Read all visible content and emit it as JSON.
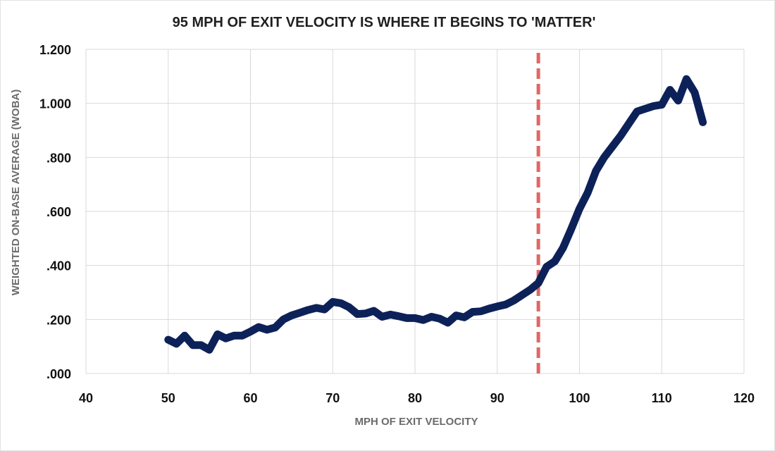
{
  "chart_data": {
    "type": "line",
    "title": "95 MPH OF EXIT VELOCITY IS WHERE IT BEGINS TO 'MATTER'",
    "xlabel": "MPH OF EXIT VELOCITY",
    "ylabel": "WEIGHTED ON-BASE AVERAGE (WOBA)",
    "xlim": [
      40,
      120
    ],
    "ylim": [
      0,
      1.2
    ],
    "x_ticks": [
      40,
      50,
      60,
      70,
      80,
      90,
      100,
      110,
      120
    ],
    "x_tick_labels": [
      "40",
      "50",
      "60",
      "70",
      "80",
      "90",
      "100",
      "110",
      "120"
    ],
    "y_ticks": [
      0,
      0.2,
      0.4,
      0.6,
      0.8,
      1.0,
      1.2
    ],
    "y_tick_labels": [
      ".000",
      ".200",
      ".400",
      ".600",
      ".800",
      "1.000",
      "1.200"
    ],
    "grid": true,
    "colors": {
      "line": "#0d2159",
      "marker": "#e06666",
      "grid": "#d9d9d9"
    },
    "series": [
      {
        "x": [
          50,
          51,
          52,
          53,
          54,
          55,
          56,
          57,
          58,
          59,
          60,
          61,
          62,
          63,
          64,
          65,
          66,
          67,
          68,
          69,
          70,
          71,
          72,
          73,
          74,
          75,
          76,
          77,
          78,
          79,
          80,
          81,
          82,
          83,
          84,
          85,
          86,
          87,
          88,
          89,
          90,
          91,
          92,
          93,
          94,
          95,
          96,
          97,
          98,
          99,
          100,
          101,
          102,
          103,
          104,
          105,
          106,
          107,
          108,
          109,
          110,
          111,
          112,
          113,
          114,
          115
        ],
        "y": [
          0.125,
          0.11,
          0.14,
          0.105,
          0.105,
          0.088,
          0.145,
          0.13,
          0.14,
          0.14,
          0.155,
          0.172,
          0.162,
          0.17,
          0.2,
          0.215,
          0.225,
          0.235,
          0.243,
          0.237,
          0.265,
          0.26,
          0.245,
          0.22,
          0.222,
          0.232,
          0.21,
          0.218,
          0.212,
          0.205,
          0.205,
          0.198,
          0.21,
          0.203,
          0.188,
          0.215,
          0.208,
          0.228,
          0.23,
          0.24,
          0.248,
          0.255,
          0.27,
          0.29,
          0.31,
          0.335,
          0.395,
          0.415,
          0.465,
          0.535,
          0.61,
          0.67,
          0.75,
          0.8,
          0.84,
          0.88,
          0.925,
          0.97,
          0.98,
          0.99,
          0.995,
          1.05,
          1.01,
          1.09,
          1.04,
          0.93
        ]
      }
    ],
    "reference_line": {
      "x": 95,
      "style": "dashed"
    }
  }
}
